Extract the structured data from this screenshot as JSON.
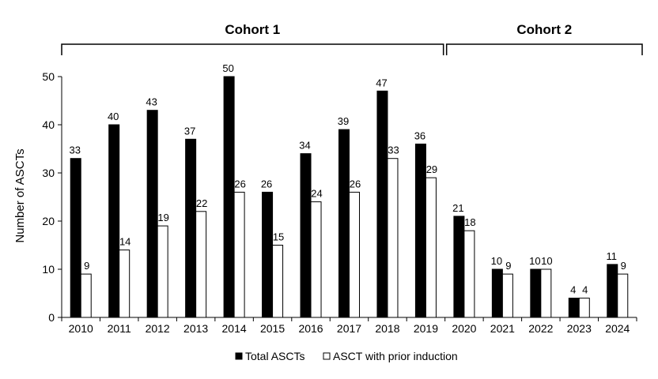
{
  "chart_data": {
    "type": "bar",
    "categories": [
      "2010",
      "2011",
      "2012",
      "2013",
      "2014",
      "2015",
      "2016",
      "2017",
      "2018",
      "2019",
      "2020",
      "2021",
      "2022",
      "2023",
      "2024"
    ],
    "series": [
      {
        "name": "Total ASCTs",
        "values": [
          33,
          40,
          43,
          37,
          50,
          26,
          34,
          39,
          47,
          36,
          21,
          10,
          10,
          4,
          11
        ],
        "color": "#000000"
      },
      {
        "name": "ASCT with prior induction",
        "values": [
          9,
          14,
          19,
          22,
          26,
          15,
          24,
          26,
          33,
          29,
          18,
          9,
          10,
          4,
          9
        ],
        "color": "#ffffff"
      }
    ],
    "ylabel": "Number of ASCTs",
    "xlabel": "",
    "ylim": [
      0,
      50
    ],
    "yticks": [
      0,
      10,
      20,
      30,
      40,
      50
    ],
    "grid": false,
    "legend": "bottom-center",
    "cohorts": [
      {
        "label": "Cohort 1",
        "from": "2010",
        "to": "2019"
      },
      {
        "label": "Cohort 2",
        "from": "2020",
        "to": "2024"
      }
    ]
  }
}
